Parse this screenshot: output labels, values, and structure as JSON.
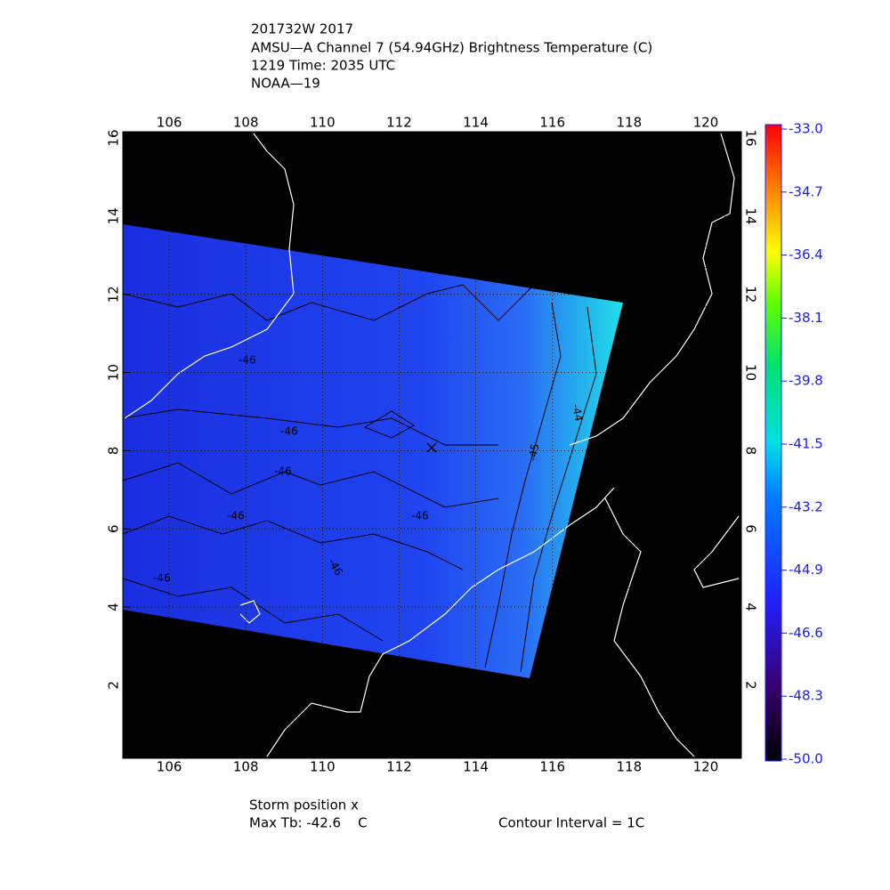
{
  "header": {
    "lines": [
      "201732W 2017",
      "AMSU—A Channel 7 (54.94GHz) Brightness Temperature (C)",
      "1219 Time: 2035 UTC",
      "NOAA—19"
    ]
  },
  "map": {
    "xlim": [
      104.79,
      120.93
    ],
    "ylim": [
      0.13,
      16.16
    ],
    "xticks": [
      106,
      108,
      110,
      112,
      114,
      116,
      118,
      120
    ],
    "yticks": [
      2,
      4,
      6,
      8,
      10,
      12,
      14,
      16
    ],
    "contour_labels": [
      "-46",
      "-46",
      "-46",
      "-46",
      "-46",
      "-46",
      "-46",
      "-44",
      "-45"
    ]
  },
  "colorbar": {
    "range": [
      -50,
      -33
    ],
    "ticks": [
      {
        "value": -33,
        "label": "-33.0"
      },
      {
        "value": -34.7,
        "label": "-34.7"
      },
      {
        "value": -36.4,
        "label": "-36.4"
      },
      {
        "value": -38.1,
        "label": "-38.1"
      },
      {
        "value": -39.8,
        "label": "-39.8"
      },
      {
        "value": -41.5,
        "label": "-41.5"
      },
      {
        "value": -43.2,
        "label": "-43.2"
      },
      {
        "value": -44.9,
        "label": "-44.9"
      },
      {
        "value": -46.6,
        "label": "-46.6"
      },
      {
        "value": -48.3,
        "label": "-48.3"
      },
      {
        "value": -50,
        "label": "-50.0"
      }
    ]
  },
  "footer": {
    "storm": "Storm position x",
    "max_tb": "Max Tb: -42.6    C",
    "contour": "Contour Interval = 1C"
  }
}
